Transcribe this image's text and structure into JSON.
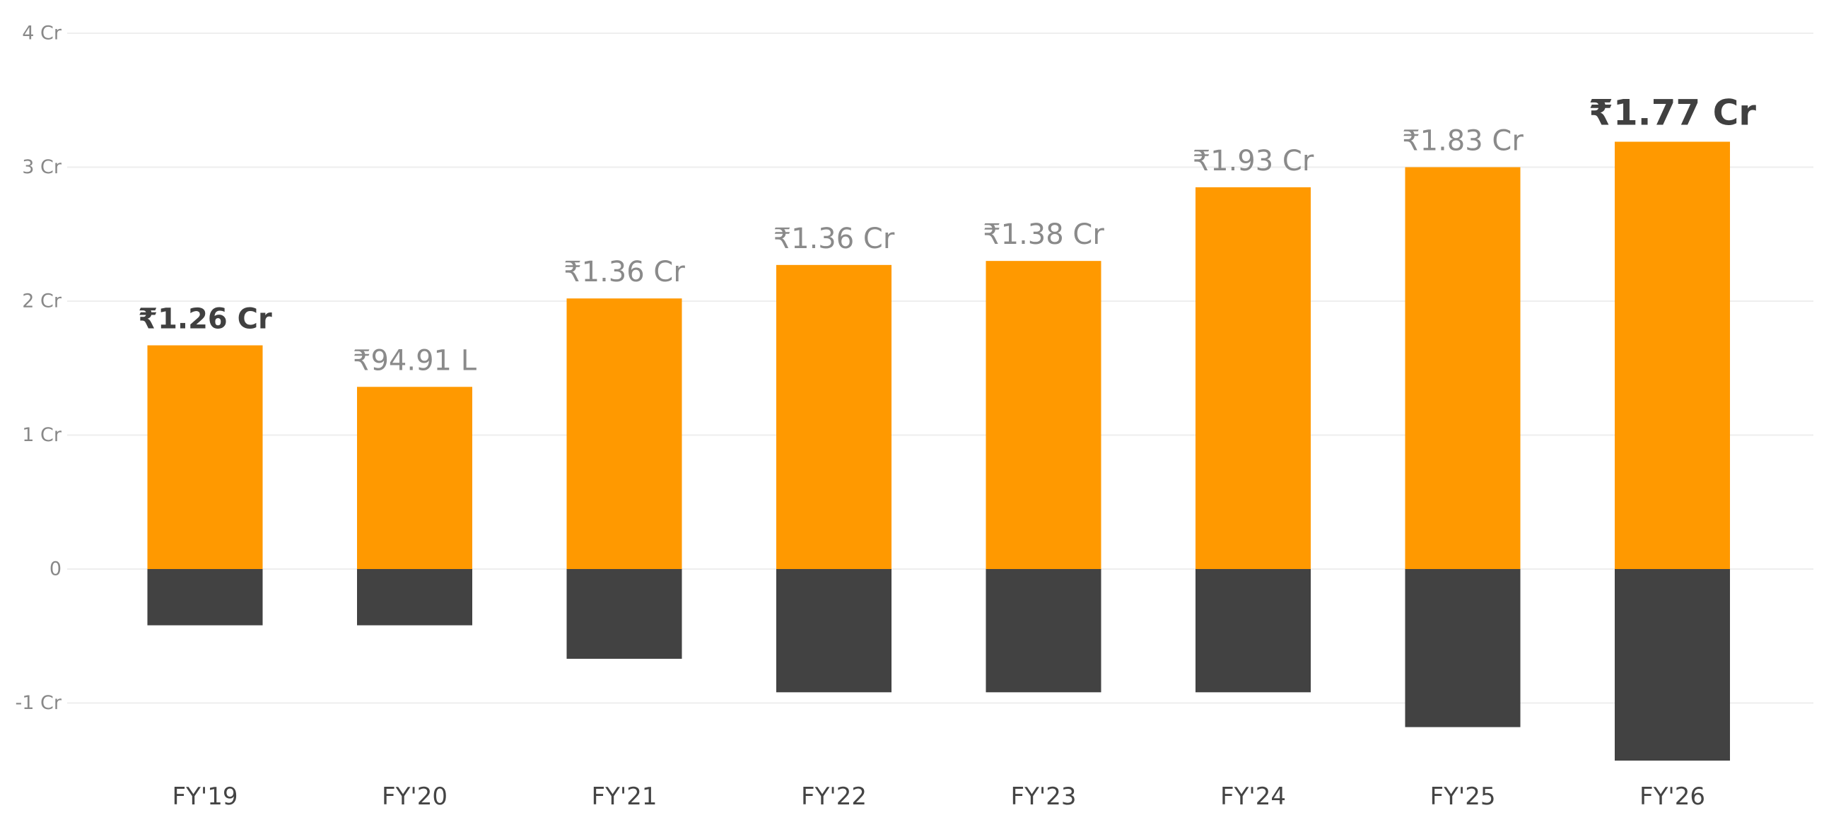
{
  "chart_data": {
    "type": "bar",
    "stacked": "diverging",
    "categories": [
      "FY'19",
      "FY'20",
      "FY'21",
      "FY'22",
      "FY'23",
      "FY'24",
      "FY'25",
      "FY'26"
    ],
    "series": [
      {
        "color": "#FF9900",
        "values": [
          1.67,
          1.36,
          2.02,
          2.27,
          2.3,
          2.85,
          3.0,
          3.19
        ]
      },
      {
        "color": "#424242",
        "values": [
          -0.42,
          -0.42,
          -0.67,
          -0.92,
          -0.92,
          -0.92,
          -1.18,
          -1.43
        ]
      }
    ],
    "value_labels": [
      "₹1.26 Cr",
      "₹94.91 L",
      "₹1.36 Cr",
      "₹1.36 Cr",
      "₹1.38 Cr",
      "₹1.93 Cr",
      "₹1.83 Cr",
      "₹1.77 Cr"
    ],
    "value_label_emphasis": [
      "bold",
      "normal",
      "normal",
      "normal",
      "normal",
      "normal",
      "normal",
      "bold-large"
    ],
    "y_ticks": [
      {
        "value": 4,
        "label": "4 Cr"
      },
      {
        "value": 3,
        "label": "3 Cr"
      },
      {
        "value": 2,
        "label": "2 Cr"
      },
      {
        "value": 1,
        "label": "1 Cr"
      },
      {
        "value": 0,
        "label": "0"
      },
      {
        "value": -1,
        "label": "-1 Cr"
      }
    ],
    "ylim": [
      -1.75,
      4.25
    ],
    "grid": true,
    "legend": "none",
    "title": "",
    "xlabel": "",
    "ylabel": ""
  }
}
